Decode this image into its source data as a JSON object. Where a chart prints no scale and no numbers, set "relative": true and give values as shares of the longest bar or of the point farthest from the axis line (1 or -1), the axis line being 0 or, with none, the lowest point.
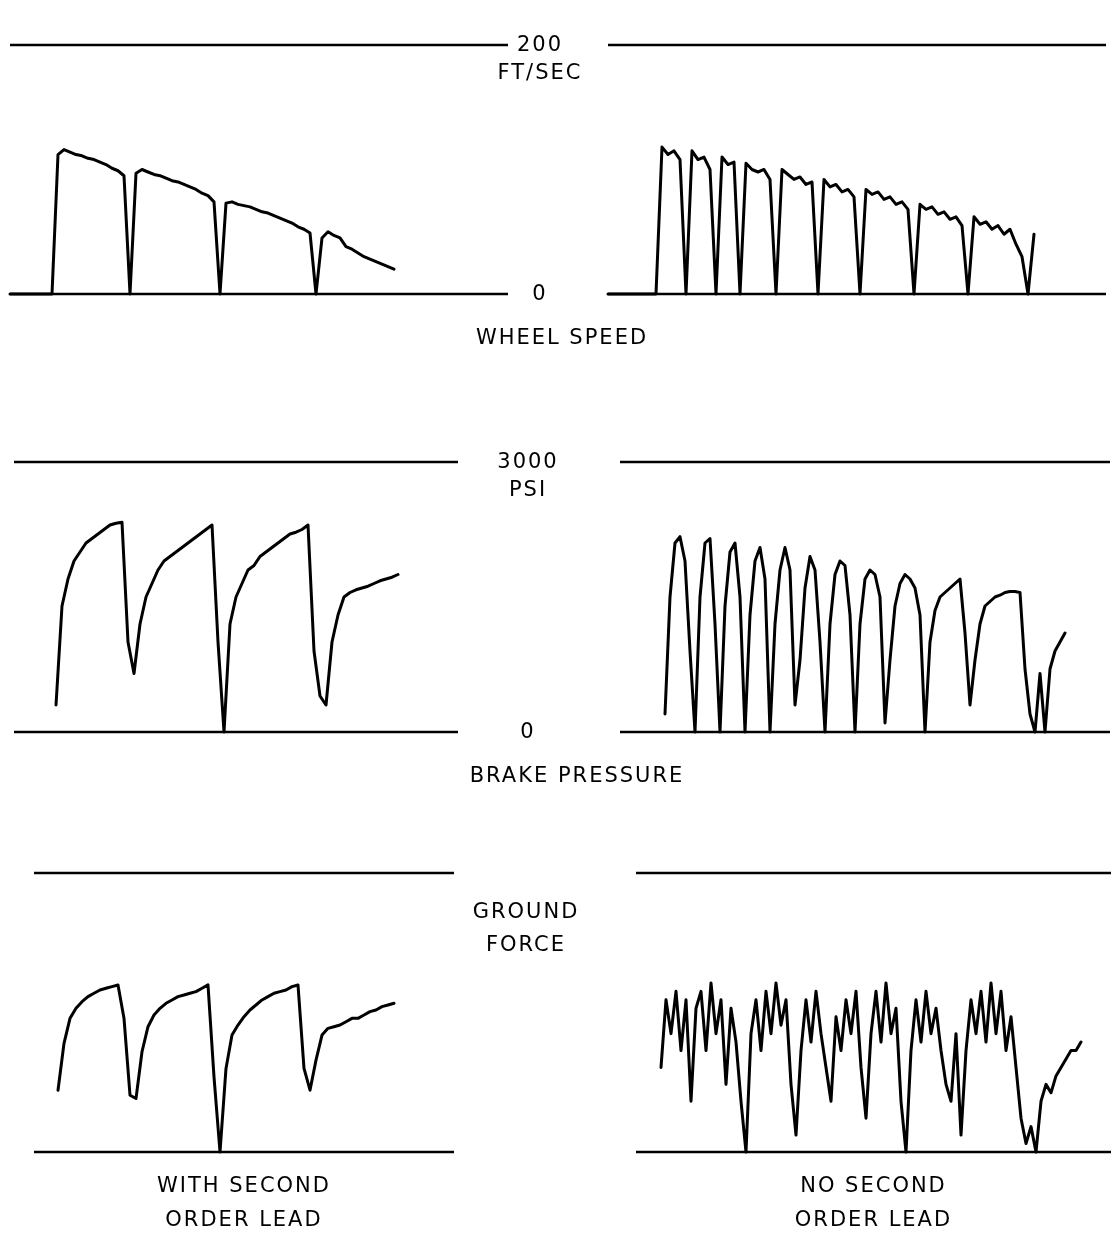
{
  "chart_data": [
    {
      "type": "line",
      "ylabel": "FT/SEC",
      "ylim": [
        0,
        200
      ],
      "yticks": [
        0,
        200
      ],
      "tick_labels": "y",
      "ref_lines": [
        {
          "axis": "y",
          "value": 200
        }
      ],
      "categories": [
        null,
        null,
        null,
        null,
        null,
        null,
        null,
        null,
        null,
        null,
        null,
        null,
        null,
        null,
        null,
        null,
        null,
        null,
        null,
        null,
        null,
        null,
        null,
        null,
        null,
        null,
        null,
        null,
        null,
        null,
        null,
        null,
        null,
        null,
        null,
        null,
        null,
        null,
        null,
        null,
        null,
        null,
        null,
        null,
        null,
        null,
        null,
        null,
        null,
        null,
        null,
        null,
        null,
        null,
        null,
        null,
        null,
        null,
        null,
        null,
        null,
        null,
        null,
        null,
        null,
        null,
        null,
        null,
        null,
        null,
        null,
        null,
        null,
        null,
        null,
        null,
        null,
        null,
        null,
        null,
        null,
        null,
        null,
        null
      ],
      "series": [
        {
          "color": "#000000",
          "values": [
            0,
            0,
            0,
            0,
            0,
            0,
            0,
            0,
            112,
            116,
            114,
            112,
            111,
            109,
            108,
            106,
            104,
            101,
            99,
            95,
            0,
            97,
            100,
            98,
            96,
            95,
            93,
            91,
            90,
            88,
            86,
            84,
            81,
            79,
            74,
            0,
            73,
            74,
            72,
            71,
            70,
            68,
            66,
            65,
            63,
            61,
            59,
            57,
            54,
            52,
            49,
            0,
            45,
            50,
            47,
            45,
            38,
            36,
            33,
            30,
            28,
            26,
            24,
            22,
            20,
            null,
            null,
            null,
            null,
            null,
            null,
            null,
            null,
            null,
            null,
            null,
            null,
            null,
            null,
            null,
            null,
            null,
            null,
            null
          ]
        }
      ]
    },
    {
      "type": "line",
      "annotations": [
        "WHEEL SPEED"
      ],
      "ylim": [
        0,
        200
      ],
      "tick_labels": false,
      "ref_lines": [
        {
          "axis": "y",
          "value": 200
        }
      ],
      "categories": [
        null,
        null,
        null,
        null,
        null,
        null,
        null,
        null,
        null,
        null,
        null,
        null,
        null,
        null,
        null,
        null,
        null,
        null,
        null,
        null,
        null,
        null,
        null,
        null,
        null,
        null,
        null,
        null,
        null,
        null,
        null,
        null,
        null,
        null,
        null,
        null,
        null,
        null,
        null,
        null,
        null,
        null,
        null,
        null,
        null,
        null,
        null,
        null,
        null,
        null,
        null,
        null,
        null,
        null,
        null,
        null,
        null,
        null,
        null,
        null,
        null,
        null,
        null,
        null,
        null,
        null,
        null,
        null,
        null,
        null,
        null,
        null,
        null,
        null,
        null,
        null,
        null,
        null,
        null,
        null,
        null,
        null,
        null,
        null
      ],
      "series": [
        {
          "color": "#000000",
          "values": [
            0,
            0,
            0,
            0,
            0,
            0,
            0,
            0,
            0,
            118,
            112,
            115,
            108,
            0,
            115,
            108,
            110,
            100,
            0,
            110,
            104,
            106,
            0,
            105,
            100,
            98,
            100,
            92,
            0,
            100,
            96,
            92,
            94,
            88,
            90,
            0,
            92,
            86,
            88,
            82,
            84,
            78,
            0,
            84,
            80,
            82,
            76,
            78,
            72,
            74,
            68,
            0,
            72,
            68,
            70,
            64,
            66,
            60,
            62,
            55,
            0,
            62,
            56,
            58,
            52,
            55,
            48,
            52,
            40,
            30,
            0,
            48,
            null,
            null,
            null,
            null,
            null,
            null,
            null,
            null,
            null,
            null,
            null,
            null
          ]
        }
      ]
    },
    {
      "type": "line",
      "ylabel": "PSI",
      "ylim": [
        0,
        3000
      ],
      "yticks": [
        0,
        3000
      ],
      "tick_labels": "y",
      "ref_lines": [
        {
          "axis": "y",
          "value": 3000
        }
      ],
      "categories": [
        null,
        null,
        null,
        null,
        null,
        null,
        null,
        null,
        null,
        null,
        null,
        null,
        null,
        null,
        null,
        null,
        null,
        null,
        null,
        null,
        null,
        null,
        null,
        null,
        null,
        null,
        null,
        null,
        null,
        null,
        null,
        null,
        null,
        null,
        null,
        null,
        null,
        null,
        null,
        null,
        null,
        null,
        null,
        null,
        null,
        null,
        null,
        null,
        null,
        null,
        null,
        null,
        null,
        null,
        null,
        null,
        null,
        null,
        null,
        null,
        null,
        null,
        null,
        null,
        null,
        null,
        null,
        null,
        null,
        null,
        null,
        null,
        null,
        null,
        null
      ],
      "series": [
        {
          "color": "#000000",
          "values": [
            null,
            null,
            null,
            null,
            null,
            null,
            null,
            300,
            1400,
            1700,
            1900,
            2000,
            2100,
            2150,
            2200,
            2250,
            2300,
            2320,
            2330,
            1000,
            650,
            1200,
            1500,
            1650,
            1800,
            1900,
            1950,
            2000,
            2050,
            2100,
            2150,
            2200,
            2250,
            2300,
            1000,
            0,
            1200,
            1500,
            1650,
            1800,
            1850,
            1950,
            2000,
            2050,
            2100,
            2150,
            2200,
            2220,
            2250,
            2300,
            900,
            400,
            300,
            1000,
            1300,
            1500,
            1550,
            1580,
            1600,
            1620,
            1650,
            1680,
            1700,
            1720,
            1750,
            null,
            null,
            null,
            null,
            null,
            null,
            null,
            null,
            null,
            null
          ]
        }
      ]
    },
    {
      "type": "line",
      "annotations": [
        "BRAKE PRESSURE"
      ],
      "ylim": [
        0,
        3000
      ],
      "tick_labels": false,
      "ref_lines": [
        {
          "axis": "y",
          "value": 3000
        }
      ],
      "categories": [
        null,
        null,
        null,
        null,
        null,
        null,
        null,
        null,
        null,
        null,
        null,
        null,
        null,
        null,
        null,
        null,
        null,
        null,
        null,
        null,
        null,
        null,
        null,
        null,
        null,
        null,
        null,
        null,
        null,
        null,
        null,
        null,
        null,
        null,
        null,
        null,
        null,
        null,
        null,
        null,
        null,
        null,
        null,
        null,
        null,
        null,
        null,
        null,
        null,
        null,
        null,
        null,
        null,
        null,
        null,
        null,
        null,
        null,
        null,
        null,
        null,
        null,
        null,
        null,
        null,
        null,
        null,
        null,
        null,
        null,
        null,
        null,
        null,
        null,
        null,
        null,
        null,
        null,
        null,
        null,
        null,
        null,
        null,
        null,
        null,
        null,
        null,
        null,
        null,
        null,
        null,
        null,
        null,
        null,
        null,
        null,
        null,
        null,
        null
      ],
      "series": [
        {
          "color": "#000000",
          "values": [
            null,
            null,
            null,
            null,
            null,
            null,
            null,
            null,
            null,
            200,
            1500,
            2100,
            2170,
            1900,
            900,
            0,
            1500,
            2100,
            2150,
            1200,
            0,
            1400,
            2000,
            2100,
            1500,
            0,
            1300,
            1900,
            2050,
            1700,
            0,
            1200,
            1800,
            2050,
            1800,
            300,
            800,
            1600,
            1950,
            1800,
            1000,
            0,
            1200,
            1750,
            1900,
            1850,
            1300,
            0,
            1200,
            1700,
            1800,
            1750,
            1500,
            100,
            800,
            1400,
            1650,
            1750,
            1700,
            1600,
            1300,
            0,
            1000,
            1350,
            1500,
            1550,
            1600,
            1650,
            1700,
            1100,
            300,
            800,
            1200,
            1400,
            1450,
            1500,
            1520,
            1550,
            1560,
            1560,
            1550,
            700,
            200,
            0,
            650,
            0,
            700,
            900,
            1000,
            1100,
            null,
            null,
            null,
            null,
            null,
            null,
            null,
            null,
            null
          ]
        }
      ]
    },
    {
      "type": "line",
      "relative": true,
      "ylabel": "GROUND FORCE",
      "xlabel": "WITH SECOND ORDER LEAD",
      "tick_labels": false,
      "ref_lines": [
        {
          "axis": "y",
          "value": 1.67
        }
      ],
      "categories": [
        null,
        null,
        null,
        null,
        null,
        null,
        null,
        null,
        null,
        null,
        null,
        null,
        null,
        null,
        null,
        null,
        null,
        null,
        null,
        null,
        null,
        null,
        null,
        null,
        null,
        null,
        null,
        null,
        null,
        null,
        null,
        null,
        null,
        null,
        null,
        null,
        null,
        null,
        null,
        null,
        null,
        null,
        null,
        null,
        null,
        null,
        null,
        null,
        null,
        null,
        null,
        null,
        null,
        null,
        null,
        null,
        null,
        null,
        null,
        null,
        null,
        null,
        null,
        null,
        null,
        null,
        null,
        null,
        null,
        null,
        null
      ],
      "series": [
        {
          "color": "#000000",
          "values": [
            null,
            null,
            null,
            null,
            0.37,
            0.65,
            0.8,
            0.86,
            0.9,
            0.93,
            0.95,
            0.97,
            0.98,
            0.99,
            1,
            0.8,
            0.34,
            0.32,
            0.6,
            0.75,
            0.82,
            0.86,
            0.89,
            0.91,
            0.93,
            0.94,
            0.95,
            0.96,
            0.98,
            1,
            0.45,
            0,
            0.5,
            0.7,
            0.76,
            0.81,
            0.85,
            0.88,
            0.91,
            0.93,
            0.95,
            0.96,
            0.97,
            0.99,
            1,
            0.5,
            0.37,
            0.55,
            0.7,
            0.74,
            0.75,
            0.76,
            0.78,
            0.8,
            0.8,
            0.82,
            0.84,
            0.85,
            0.87,
            0.88,
            0.89,
            null,
            null,
            null,
            null,
            null,
            null,
            null,
            null,
            null,
            null
          ]
        }
      ]
    },
    {
      "type": "line",
      "relative": true,
      "xlabel": "NO SECOND ORDER LEAD",
      "tick_labels": false,
      "ref_lines": [
        {
          "axis": "y",
          "value": 1.65
        }
      ],
      "categories": [
        null,
        null,
        null,
        null,
        null,
        null,
        null,
        null,
        null,
        null,
        null,
        null,
        null,
        null,
        null,
        null,
        null,
        null,
        null,
        null,
        null,
        null,
        null,
        null,
        null,
        null,
        null,
        null,
        null,
        null,
        null,
        null,
        null,
        null,
        null,
        null,
        null,
        null,
        null,
        null,
        null,
        null,
        null,
        null,
        null,
        null,
        null,
        null,
        null,
        null,
        null,
        null,
        null,
        null,
        null,
        null,
        null,
        null,
        null,
        null,
        null,
        null,
        null,
        null,
        null,
        null,
        null,
        null,
        null,
        null,
        null,
        null,
        null,
        null,
        null,
        null,
        null,
        null,
        null,
        null,
        null,
        null,
        null,
        null,
        null,
        null,
        null,
        null,
        null,
        null,
        null,
        null,
        null,
        null,
        null,
        null
      ],
      "series": [
        {
          "color": "#000000",
          "values": [
            null,
            null,
            null,
            null,
            null,
            0.5,
            0.9,
            0.7,
            0.95,
            0.6,
            0.9,
            0.3,
            0.85,
            0.95,
            0.6,
            1,
            0.7,
            0.9,
            0.4,
            0.85,
            0.65,
            0.3,
            0,
            0.7,
            0.9,
            0.6,
            0.95,
            0.7,
            1,
            0.75,
            0.9,
            0.4,
            0.1,
            0.6,
            0.9,
            0.65,
            0.95,
            0.7,
            0.5,
            0.3,
            0.8,
            0.6,
            0.9,
            0.7,
            0.95,
            0.5,
            0.2,
            0.7,
            0.95,
            0.65,
            1,
            0.7,
            0.85,
            0.3,
            0,
            0.6,
            0.9,
            0.65,
            0.95,
            0.7,
            0.85,
            0.6,
            0.4,
            0.3,
            0.7,
            0.1,
            0.6,
            0.9,
            0.7,
            0.95,
            0.65,
            1,
            0.7,
            0.95,
            0.6,
            0.8,
            0.5,
            0.2,
            0.05,
            0.15,
            0,
            0.3,
            0.4,
            0.35,
            0.45,
            0.5,
            0.55,
            0.6,
            0.6,
            0.65,
            null,
            null,
            null,
            null,
            null,
            null
          ]
        }
      ]
    }
  ]
}
